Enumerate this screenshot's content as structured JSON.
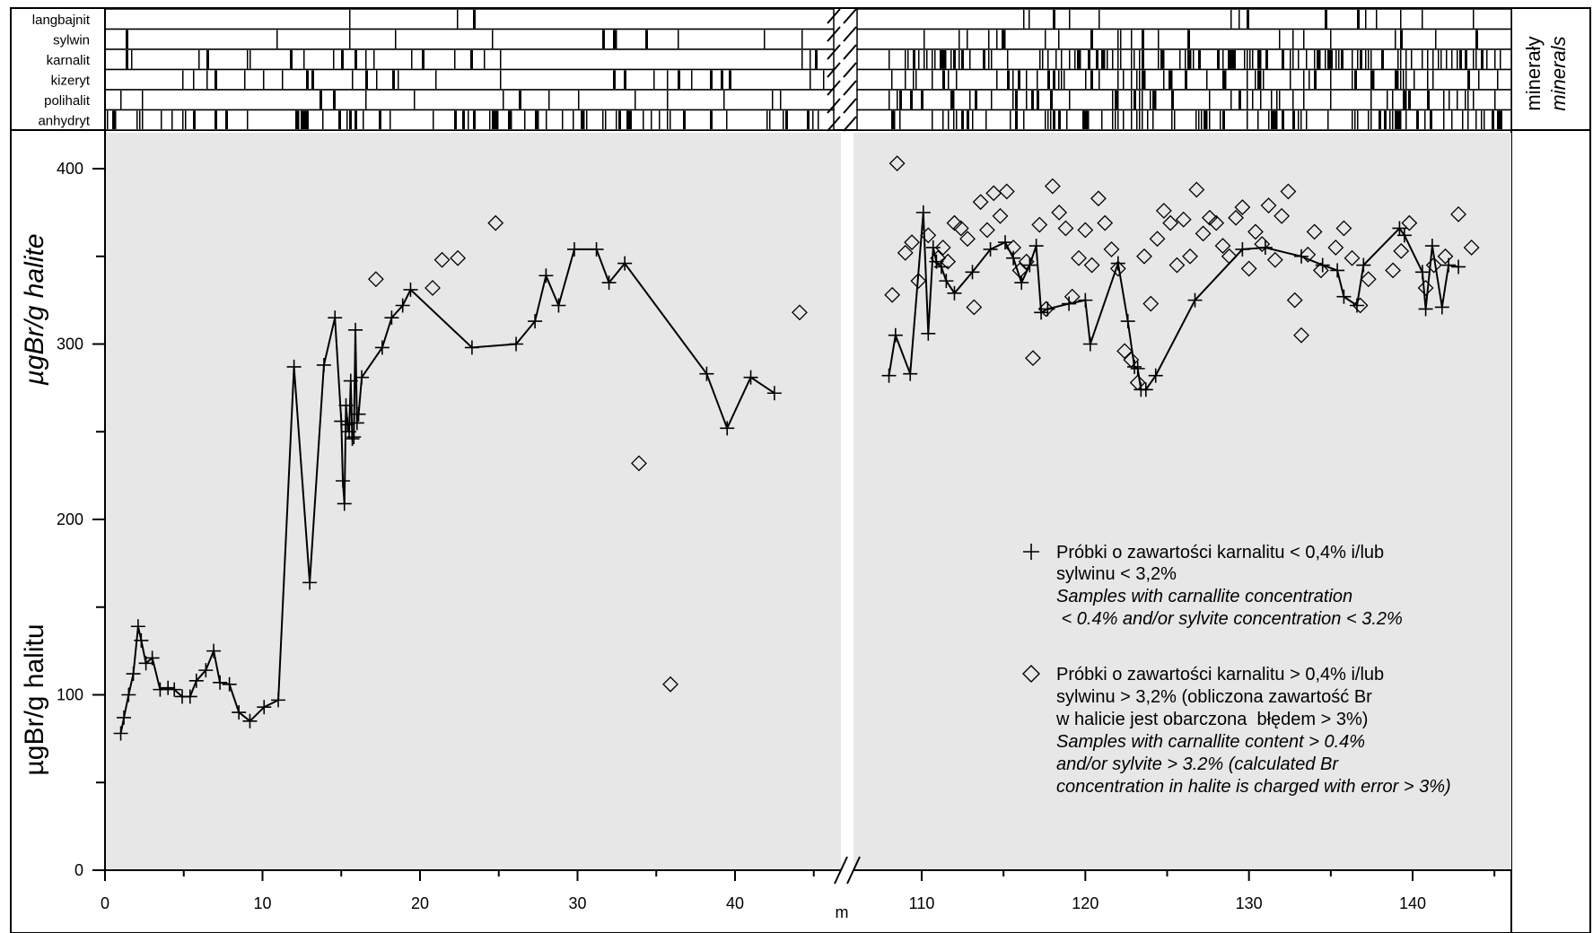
{
  "chart_data": {
    "type": "scatter",
    "y_label_top": "µgBr/g halite",
    "y_label_bottom": "µgBr/g halitu",
    "x_unit": "m",
    "side_label": "minerały",
    "side_label_it": "minerals",
    "ylim": [
      0,
      400
    ],
    "y_ticks": [
      "0",
      "100",
      "200",
      "300",
      "400"
    ],
    "x_segment_1": {
      "range": [
        0,
        46
      ],
      "ticks": [
        0,
        10,
        20,
        30,
        40
      ],
      "tick_labels": [
        "0",
        "10",
        "20",
        "30",
        "40"
      ]
    },
    "x_segment_2": {
      "range": [
        105,
        143.6
      ],
      "ticks": [
        110,
        120,
        130,
        140
      ],
      "tick_labels": [
        "110",
        "120",
        "130",
        "140"
      ]
    },
    "background": "#e7e7e8",
    "minerals": [
      "langbajnit",
      "sylwin",
      "karnalit",
      "kizeryt",
      "polihalit",
      "anhydryt"
    ],
    "legend": [
      {
        "marker": "plus",
        "lines": [
          "Próbki o zawartości karnalitu < 0,4% i/lub",
          "sylwinu < 3,2%"
        ],
        "lines_it": [
          "Samples with carnallite concentration",
          " < 0.4% and/or sylvite concentration < 3.2%"
        ]
      },
      {
        "marker": "diamond",
        "lines": [
          "Próbki o zawartości karnalitu > 0,4% i/lub",
          "sylwinu > 3,2% (obliczona zawartość Br",
          "w halicie jest obarczona  błędem > 3%)"
        ],
        "lines_it": [
          "Samples with carnallite content > 0.4%",
          "and/or sylvite > 3.2% (calculated Br",
          "concentration in halite is charged with error > 3%)"
        ]
      }
    ],
    "series": [
      {
        "marker": "plus",
        "connected": true,
        "x": [
          1.0,
          1.2,
          1.5,
          1.8,
          2.1,
          2.3,
          2.6,
          3.0,
          3.5,
          4.0,
          4.4,
          4.9,
          5.4,
          5.8,
          6.4,
          6.9,
          7.3,
          7.9,
          8.5,
          9.2,
          10.1,
          11.0,
          12.0,
          13.0,
          13.9,
          14.6,
          15.0,
          15.1,
          15.2,
          15.3,
          15.4,
          15.5,
          15.6,
          15.7,
          15.8,
          15.9,
          16.0,
          16.1,
          16.3,
          17.6,
          18.2,
          18.9,
          19.4,
          23.3,
          26.1,
          27.3,
          28.0,
          28.8,
          29.8,
          31.2,
          32.0,
          33.0,
          38.2,
          39.5,
          41.0,
          42.5
        ],
        "y": [
          78,
          87,
          100,
          112,
          139,
          131,
          118,
          121,
          103,
          104,
          103,
          99,
          99,
          108,
          114,
          125,
          107,
          106,
          90,
          85,
          93,
          97,
          287,
          164,
          288,
          315,
          256,
          222,
          209,
          265,
          254,
          250,
          279,
          246,
          247,
          308,
          255,
          260,
          281,
          298,
          315,
          322,
          331,
          298,
          300,
          313,
          339,
          322,
          354,
          354,
          335,
          346,
          283,
          252,
          281,
          272
        ]
      },
      {
        "marker": "diamond",
        "connected": false,
        "x": [
          17.2,
          20.8,
          21.4,
          22.4,
          24.8,
          33.9,
          35.9,
          44.1
        ],
        "y": [
          337,
          332,
          348,
          349,
          369,
          232,
          106,
          318
        ]
      },
      {
        "marker": "plus",
        "connected": true,
        "x": [
          108.0,
          108.4,
          109.3,
          110.1,
          110.4,
          110.7,
          110.9,
          111.2,
          111.5,
          112.0,
          113.1,
          114.2,
          115.1,
          115.6,
          116.1,
          116.6,
          117.0,
          117.3,
          117.7,
          119.0,
          120.0,
          120.3,
          122.0,
          122.6,
          123.0,
          123.2,
          123.4,
          123.7,
          124.3,
          126.7,
          129.6,
          131.0,
          133.2,
          134.5,
          135.4,
          135.8,
          136.6,
          137.0,
          139.2,
          139.5,
          140.6,
          140.8,
          141.2,
          141.8,
          142.2,
          142.8
        ],
        "y": [
          282,
          305,
          283,
          375,
          306,
          355,
          347,
          344,
          336,
          329,
          341,
          354,
          358,
          349,
          335,
          345,
          356,
          318,
          320,
          323,
          325,
          300,
          346,
          313,
          287,
          286,
          274,
          274,
          282,
          325,
          354,
          355,
          350,
          345,
          342,
          327,
          322,
          345,
          366,
          362,
          341,
          320,
          356,
          321,
          345,
          344
        ]
      },
      {
        "marker": "diamond",
        "connected": false,
        "x": [
          108.2,
          108.5,
          109.0,
          109.4,
          109.8,
          110.4,
          111.0,
          111.3,
          111.6,
          112.0,
          112.4,
          112.8,
          113.2,
          113.6,
          114.0,
          114.4,
          114.8,
          115.2,
          115.6,
          116.0,
          116.4,
          116.8,
          117.2,
          117.6,
          118.0,
          118.4,
          118.8,
          119.2,
          119.6,
          120.0,
          120.4,
          120.8,
          121.2,
          121.6,
          122.0,
          122.4,
          122.8,
          123.2,
          123.6,
          124.0,
          124.4,
          124.8,
          125.2,
          125.6,
          126.0,
          126.4,
          126.8,
          127.2,
          127.6,
          128.0,
          128.4,
          128.8,
          129.2,
          129.6,
          130.0,
          130.4,
          130.8,
          131.2,
          131.6,
          132.0,
          132.4,
          132.8,
          133.2,
          133.6,
          134.0,
          134.4,
          135.3,
          135.8,
          136.3,
          136.8,
          137.3,
          138.8,
          139.3,
          139.8,
          140.8,
          141.3,
          142.0,
          142.8,
          143.6
        ],
        "y": [
          328,
          403,
          352,
          358,
          336,
          362,
          349,
          355,
          347,
          369,
          366,
          360,
          321,
          381,
          365,
          386,
          373,
          387,
          355,
          342,
          347,
          292,
          368,
          320,
          390,
          375,
          366,
          327,
          349,
          365,
          345,
          383,
          369,
          354,
          343,
          296,
          291,
          278,
          350,
          323,
          360,
          376,
          369,
          345,
          371,
          350,
          388,
          363,
          372,
          369,
          356,
          350,
          372,
          378,
          343,
          364,
          357,
          379,
          348,
          373,
          387,
          325,
          305,
          351,
          364,
          342,
          355,
          366,
          349,
          322,
          337,
          342,
          353,
          369,
          332,
          345,
          350,
          374,
          355
        ]
      }
    ]
  }
}
